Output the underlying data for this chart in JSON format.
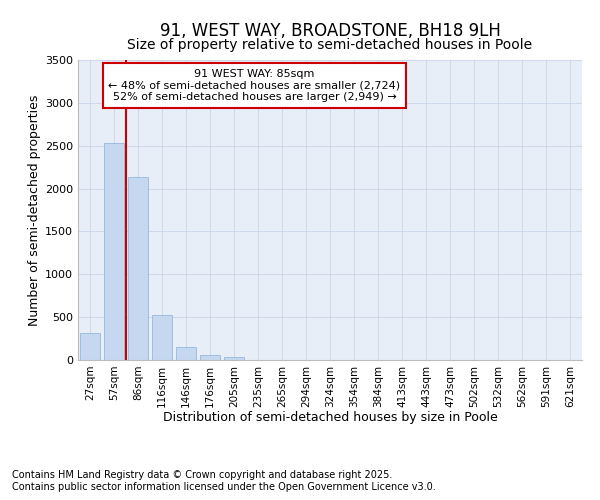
{
  "title": "91, WEST WAY, BROADSTONE, BH18 9LH",
  "subtitle": "Size of property relative to semi-detached houses in Poole",
  "xlabel": "Distribution of semi-detached houses by size in Poole",
  "ylabel": "Number of semi-detached properties",
  "categories": [
    "27sqm",
    "57sqm",
    "86sqm",
    "116sqm",
    "146sqm",
    "176sqm",
    "205sqm",
    "235sqm",
    "265sqm",
    "294sqm",
    "324sqm",
    "354sqm",
    "384sqm",
    "413sqm",
    "443sqm",
    "473sqm",
    "502sqm",
    "532sqm",
    "562sqm",
    "591sqm",
    "621sqm"
  ],
  "values": [
    320,
    2530,
    2130,
    530,
    155,
    60,
    40,
    0,
    0,
    0,
    0,
    0,
    0,
    0,
    0,
    0,
    0,
    0,
    0,
    0,
    0
  ],
  "bar_color": "#c5d8f0",
  "bar_edge_color": "#8ab0d8",
  "vline_color": "#cc0000",
  "annotation_title": "91 WEST WAY: 85sqm",
  "annotation_line1": "← 48% of semi-detached houses are smaller (2,724)",
  "annotation_line2": "52% of semi-detached houses are larger (2,949) →",
  "annotation_box_color": "#cc0000",
  "ylim": [
    0,
    3500
  ],
  "yticks": [
    0,
    500,
    1000,
    1500,
    2000,
    2500,
    3000,
    3500
  ],
  "grid_color": "#c8d4e8",
  "background_color": "#e8eef8",
  "footer1": "Contains HM Land Registry data © Crown copyright and database right 2025.",
  "footer2": "Contains public sector information licensed under the Open Government Licence v3.0.",
  "title_fontsize": 12,
  "subtitle_fontsize": 10,
  "label_fontsize": 9,
  "tick_fontsize": 7.5,
  "footer_fontsize": 7
}
